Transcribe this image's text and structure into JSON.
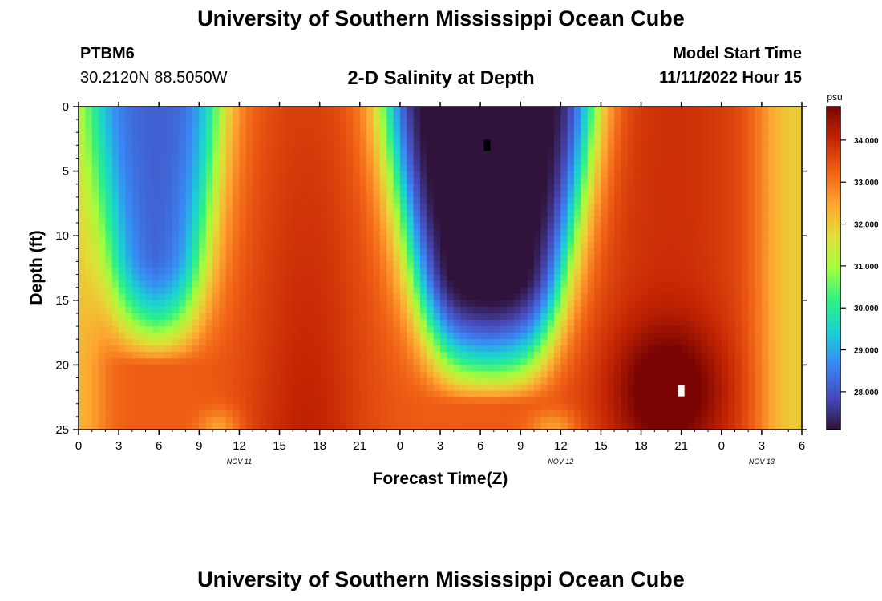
{
  "header": {
    "title": "University of Southern Mississippi Ocean Cube",
    "station": "PTBM6",
    "coordinates": "30.2120N  88.5050W",
    "subtitle": "2-D Salinity at Depth",
    "model_start_label": "Model Start Time",
    "model_start_value": "11/11/2022 Hour 15"
  },
  "footer": {
    "title": "University of Southern Mississippi Ocean Cube"
  },
  "chart_data": {
    "type": "heatmap",
    "title": "2-D Salinity at Depth",
    "xlabel": "Forecast Time(Z)",
    "ylabel": "Depth (ft)",
    "x_ticks": [
      "0",
      "3",
      "6",
      "9",
      "12",
      "15",
      "18",
      "21",
      "0",
      "3",
      "6",
      "9",
      "12",
      "15",
      "18",
      "21",
      "0",
      "3",
      "6"
    ],
    "x_range_hours": [
      0,
      54
    ],
    "date_labels": [
      {
        "label": "NOV 11",
        "hour": 12
      },
      {
        "label": "NOV 12",
        "hour": 36
      },
      {
        "label": "NOV 13",
        "hour": 51
      }
    ],
    "y_ticks": [
      0,
      5,
      10,
      15,
      20,
      25
    ],
    "ylim": [
      0,
      25
    ],
    "y_inverted": true,
    "colorbar": {
      "unit": "psu",
      "ticks": [
        "28.000",
        "29.000",
        "30.000",
        "31.000",
        "32.000",
        "33.000",
        "34.000"
      ],
      "range": [
        27.1,
        34.8
      ],
      "colormap": "turbo"
    },
    "markers": [
      {
        "hour": 30.5,
        "depth": 3,
        "color": "#000000",
        "meaning": "minimum"
      },
      {
        "hour": 45,
        "depth": 22,
        "color": "#ffffff",
        "meaning": "maximum"
      }
    ],
    "field_description": {
      "low_salinity_plumes_hours": [
        [
          1,
          11
        ],
        [
          23,
          39
        ]
      ],
      "high_salinity_hours": [
        [
          11,
          22
        ],
        [
          38,
          53
        ]
      ],
      "max_salinity_psu": 34.8,
      "min_salinity_psu": 27.1
    }
  }
}
